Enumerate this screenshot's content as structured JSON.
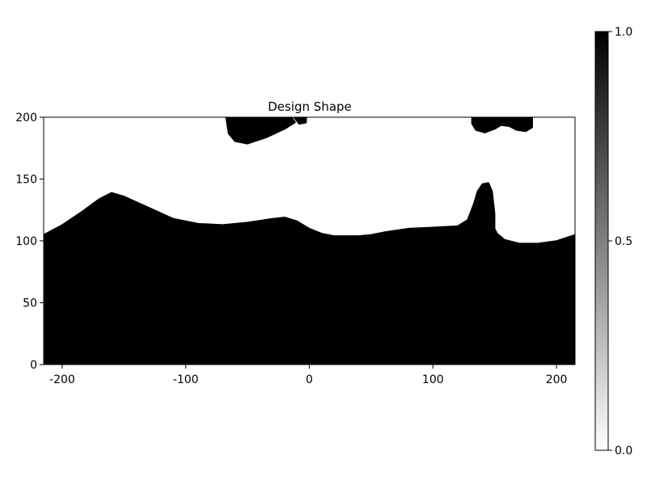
{
  "chart_data": {
    "type": "heatmap",
    "title": "Design Shape",
    "xlabel": "",
    "ylabel": "",
    "xlim": [
      -215,
      215
    ],
    "ylim": [
      0,
      200
    ],
    "xticks": [
      -200,
      -100,
      0,
      100,
      200
    ],
    "yticks": [
      0,
      50,
      100,
      150,
      200
    ],
    "colorbar": {
      "range": [
        0.0,
        1.0
      ],
      "ticks": [
        0.0,
        0.5,
        1.0
      ],
      "tick_labels": [
        "0.0",
        "0.5",
        "1.0"
      ],
      "colormap": "white-to-black"
    },
    "colors": {
      "solid": "#000000",
      "void": "#ffffff"
    },
    "surface_profile": {
      "x": [
        -215,
        -200,
        -185,
        -170,
        -160,
        -150,
        -130,
        -110,
        -90,
        -70,
        -50,
        -30,
        -20,
        -10,
        0,
        10,
        20,
        30,
        40,
        50,
        60,
        80,
        100,
        120,
        128,
        133,
        136,
        140,
        145,
        148,
        150,
        150,
        152,
        158,
        170,
        185,
        200,
        215
      ],
      "y": [
        105,
        113,
        123,
        134,
        139,
        136,
        127,
        118,
        114,
        113,
        115,
        118,
        119,
        116,
        110,
        106,
        104,
        104,
        104,
        105,
        107,
        110,
        111,
        112,
        117,
        130,
        140,
        146,
        147,
        140,
        122,
        110,
        106,
        101,
        98,
        98,
        100,
        105
      ]
    },
    "blobs": [
      {
        "x": [
          -67,
          -35,
          -15,
          -12,
          -20,
          -35,
          -50,
          -60,
          -65,
          -67
        ],
        "y": [
          200,
          200,
          200,
          196,
          191,
          184,
          179,
          181,
          187,
          200
        ]
      },
      {
        "x": [
          -12,
          -3,
          -3,
          -8,
          -12
        ],
        "y": [
          200,
          200,
          196,
          195,
          200
        ]
      },
      {
        "x": [
          132,
          180,
          180,
          175,
          168,
          162,
          155,
          150,
          142,
          135,
          132,
          132
        ],
        "y": [
          200,
          200,
          192,
          189,
          190,
          193,
          194,
          191,
          188,
          190,
          195,
          200
        ]
      }
    ]
  }
}
